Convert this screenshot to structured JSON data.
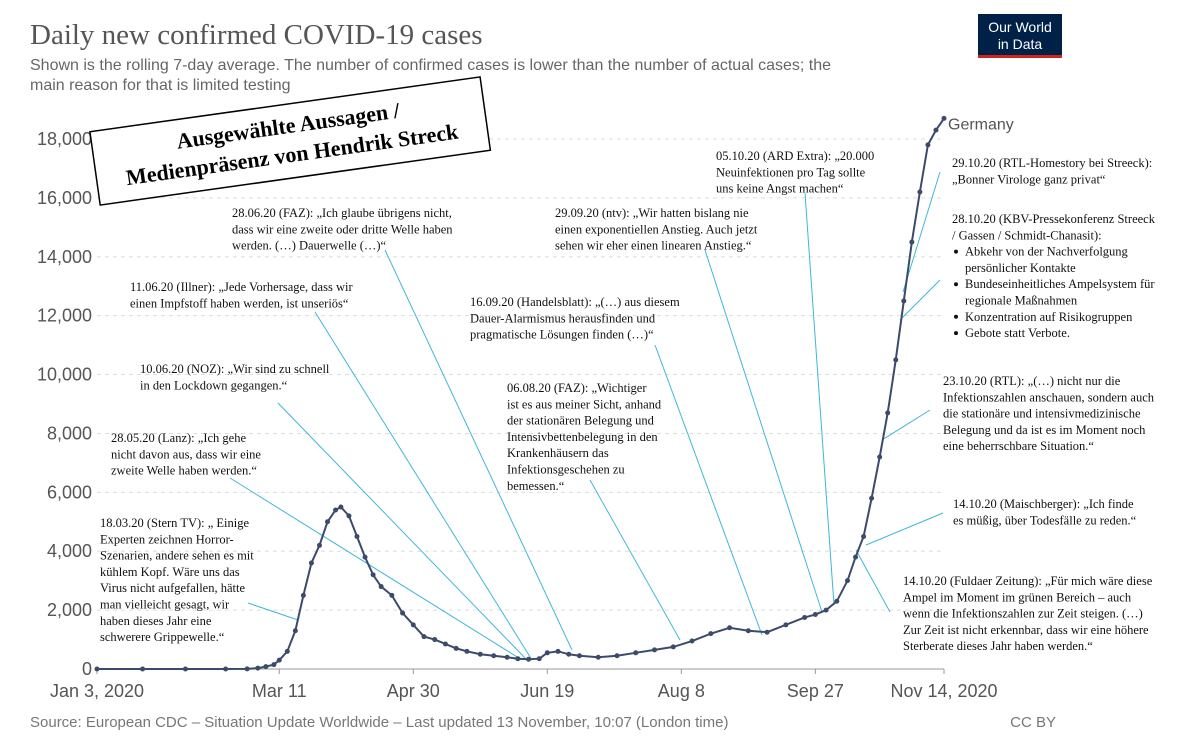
{
  "chart_data": {
    "type": "line",
    "title": "Daily new confirmed COVID-19 cases",
    "subtitle": [
      "Shown is the rolling 7-day average. The number of confirmed cases is lower than the number of actual cases; the",
      "main reason for that is limited testing"
    ],
    "source": "Source: European CDC – Situation Update Worldwide – Last updated 13 November, 10:07 (London time)",
    "license": "CC BY",
    "logo": [
      "Our World",
      "in Data"
    ],
    "callout_box": [
      "Ausgewählte Aussagen /",
      "Medienpräsenz von Hendrik Streck"
    ],
    "x": [
      "2020-01-03",
      "2020-01-20",
      "2020-02-05",
      "2020-02-20",
      "2020-02-28",
      "2020-03-03",
      "2020-03-06",
      "2020-03-09",
      "2020-03-11",
      "2020-03-14",
      "2020-03-17",
      "2020-03-20",
      "2020-03-23",
      "2020-03-26",
      "2020-03-29",
      "2020-04-01",
      "2020-04-03",
      "2020-04-06",
      "2020-04-09",
      "2020-04-12",
      "2020-04-15",
      "2020-04-18",
      "2020-04-22",
      "2020-04-26",
      "2020-04-30",
      "2020-05-04",
      "2020-05-08",
      "2020-05-12",
      "2020-05-16",
      "2020-05-20",
      "2020-05-25",
      "2020-05-30",
      "2020-06-04",
      "2020-06-08",
      "2020-06-12",
      "2020-06-16",
      "2020-06-19",
      "2020-06-23",
      "2020-06-27",
      "2020-07-01",
      "2020-07-08",
      "2020-07-15",
      "2020-07-22",
      "2020-07-29",
      "2020-08-05",
      "2020-08-12",
      "2020-08-19",
      "2020-08-26",
      "2020-09-02",
      "2020-09-09",
      "2020-09-16",
      "2020-09-23",
      "2020-09-27",
      "2020-10-01",
      "2020-10-05",
      "2020-10-09",
      "2020-10-12",
      "2020-10-15",
      "2020-10-18",
      "2020-10-21",
      "2020-10-24",
      "2020-10-27",
      "2020-10-30",
      "2020-11-02",
      "2020-11-05",
      "2020-11-08",
      "2020-11-11",
      "2020-11-14"
    ],
    "series": [
      {
        "name": "Germany",
        "color": "#3c4a6b",
        "values": [
          0,
          0,
          0,
          1,
          5,
          30,
          80,
          150,
          300,
          600,
          1300,
          2500,
          3600,
          4200,
          5000,
          5400,
          5500,
          5200,
          4500,
          3800,
          3200,
          2800,
          2500,
          1900,
          1500,
          1100,
          1000,
          850,
          700,
          600,
          500,
          450,
          400,
          350,
          330,
          350,
          550,
          600,
          500,
          450,
          400,
          450,
          550,
          650,
          750,
          950,
          1200,
          1400,
          1300,
          1250,
          1500,
          1750,
          1850,
          2000,
          2300,
          3000,
          3800,
          4500,
          5800,
          7200,
          8700,
          10500,
          12500,
          14500,
          16200,
          17800,
          18300,
          18700
        ]
      }
    ],
    "xlim": [
      "2020-01-03",
      "2020-11-14"
    ],
    "xticks": [
      {
        "value": "2020-01-03",
        "label": "Jan 3, 2020"
      },
      {
        "value": "2020-03-11",
        "label": "Mar 11"
      },
      {
        "value": "2020-04-30",
        "label": "Apr 30"
      },
      {
        "value": "2020-06-19",
        "label": "Jun 19"
      },
      {
        "value": "2020-08-08",
        "label": "Aug 8"
      },
      {
        "value": "2020-09-27",
        "label": "Sep 27"
      },
      {
        "value": "2020-11-14",
        "label": "Nov 14, 2020"
      }
    ],
    "ylim": [
      0,
      18000
    ],
    "yticks": [
      0,
      {
        "value": 2000,
        "label": "2,000"
      },
      {
        "value": 4000,
        "label": "4,000"
      },
      {
        "value": 6000,
        "label": "6,000"
      },
      {
        "value": 8000,
        "label": "8,000"
      },
      {
        "value": 10000,
        "label": "10,000"
      },
      {
        "value": 12000,
        "label": "12,000"
      },
      {
        "value": 14000,
        "label": "14,000"
      },
      {
        "value": 16000,
        "label": "16,000"
      },
      {
        "value": 18000,
        "label": "18,000"
      }
    ],
    "grid": true,
    "annotations": [
      {
        "lines": [
          "18.03.20 (Stern TV): „ Einige",
          "Experten zeichnen Horror-",
          "Szenarien, andere sehen es mit",
          "kühlem Kopf. Wäre uns das",
          "Virus nicht aufgefallen, hätte",
          "man vielleicht gesagt, wir",
          "haben dieses Jahr eine",
          "schwerere Grippewelle.“"
        ]
      },
      {
        "lines": [
          "28.05.20 (Lanz): „Ich gehe",
          "nicht davon aus, dass wir eine",
          "zweite Welle haben werden.“"
        ]
      },
      {
        "lines": [
          "10.06.20 (NOZ): „Wir sind zu schnell",
          "in den Lockdown gegangen.“"
        ]
      },
      {
        "lines": [
          "11.06.20 (Illner): „Jede Vorhersage, dass wir",
          "einen Impfstoff haben werden, ist unseriös“"
        ]
      },
      {
        "lines": [
          "28.06.20 (FAZ): „Ich glaube übrigens nicht,",
          "dass wir eine zweite oder dritte Welle haben",
          "werden. (…) Dauerwelle (…)“"
        ]
      },
      {
        "lines": [
          "06.08.20 (FAZ): „Wichtiger",
          "ist es aus meiner Sicht, anhand",
          "der stationären Belegung und",
          "Intensivbettenbelegung in den",
          "Krankenhäusern das",
          "Infektionsgeschehen zu",
          "bemessen.“"
        ]
      },
      {
        "lines": [
          "16.09.20 (Handelsblatt): „(…) aus diesem",
          "Dauer-Alarmismus herausfinden und",
          "pragmatische Lösungen finden (…)“"
        ]
      },
      {
        "lines": [
          "29.09.20 (ntv): „Wir hatten bislang nie",
          "einen exponentiellen Anstieg. Auch jetzt",
          "sehen wir eher einen linearen Anstieg.“"
        ]
      },
      {
        "lines": [
          "05.10.20 (ARD Extra): „20.000",
          "Neuinfektionen pro Tag sollte",
          "uns keine Angst machen“"
        ]
      },
      {
        "lines": [
          "29.10.20 (RTL-Homestory bei Streeck):",
          "„Bonner Virologe ganz privat“"
        ]
      },
      {
        "lines": [
          "28.10.20 (KBV-Pressekonferenz Streeck",
          "/ Gassen / Schmidt-Chanasit):"
        ],
        "bullets": [
          [
            "Abkehr von der Nachverfolgung",
            "persönlicher Kontakte"
          ],
          [
            "Bundeseinheitliches Ampelsystem für",
            "regionale Maßnahmen"
          ],
          [
            "Konzentration auf Risikogruppen"
          ],
          [
            "Gebote statt Verbote."
          ]
        ]
      },
      {
        "lines": [
          "23.10.20 (RTL): „(…) nicht nur die",
          "Infektionszahlen anschauen, sondern auch",
          "die stationäre und intensivmedizinische",
          "Belegung und da ist es im Moment noch",
          "eine beherrschbare Situation.“"
        ]
      },
      {
        "lines": [
          "14.10.20 (Maischberger): „Ich finde",
          "es müßig, über Todesfälle zu reden.“"
        ]
      },
      {
        "lines": [
          "14.10.20 (Fuldaer Zeitung): „Für mich wäre diese",
          "Ampel im Moment im grünen Bereich – auch",
          "wenn die Infektionszahlen zur Zeit steigen. (…)",
          "Zur Zeit ist nicht erkennbar, dass wir eine höhere",
          "Sterberate dieses Jahr haben werden.“"
        ]
      }
    ]
  }
}
